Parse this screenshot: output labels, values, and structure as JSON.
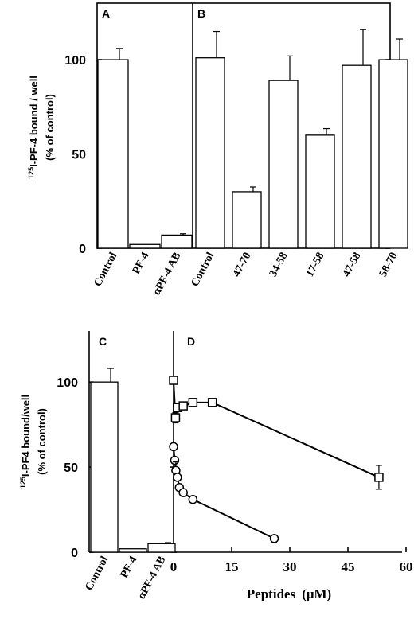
{
  "chart_data": [
    {
      "type": "bar",
      "panel": "A",
      "ylabel_sup": "125",
      "ylabel_line1": "I-PF-4 bound / well",
      "ylabel_line2": "(% of control)",
      "categories": [
        "Control",
        "PF-4",
        "αPF-4 AB"
      ],
      "values": [
        100,
        2,
        7
      ],
      "errors": [
        6,
        0,
        0.7
      ],
      "ylim": [
        0,
        130
      ],
      "yticks": [
        0,
        50,
        100
      ]
    },
    {
      "type": "bar",
      "panel": "B",
      "categories": [
        "Control",
        "47-70",
        "34-58",
        "17-58",
        "47-58",
        "58-70"
      ],
      "values": [
        101,
        30,
        89,
        60,
        97,
        100
      ],
      "errors": [
        14,
        2.5,
        13,
        3.5,
        19,
        11
      ],
      "ylim": [
        0,
        130
      ]
    },
    {
      "type": "bar",
      "panel": "C",
      "ylabel_sup": "125",
      "ylabel_line1": "I-PF4 bound/well",
      "ylabel_line2": "(% of control)",
      "categories": [
        "Control",
        "PF-4",
        "αPF-4 AB"
      ],
      "values": [
        100,
        2,
        5
      ],
      "errors": [
        8,
        0,
        0.6
      ],
      "ylim": [
        0,
        130
      ],
      "yticks": [
        0,
        50,
        100
      ]
    },
    {
      "type": "line",
      "panel": "D",
      "xlabel": "Peptides",
      "xunit": "(μM)",
      "xlim": [
        0,
        60
      ],
      "xticks": [
        0,
        15,
        30,
        45,
        60
      ],
      "ylim": [
        0,
        130
      ],
      "series": [
        {
          "marker": "square",
          "x": [
            0,
            0.5,
            1,
            2.5,
            5,
            10,
            53
          ],
          "y": [
            101,
            79,
            85,
            86,
            88,
            88,
            44
          ],
          "err": [
            0,
            3,
            0,
            0,
            0,
            0,
            7
          ]
        },
        {
          "marker": "circle",
          "x": [
            0,
            0.3,
            0.6,
            1,
            1.5,
            2.5,
            5,
            26
          ],
          "y": [
            62,
            54,
            48,
            44,
            38,
            35,
            31,
            8
          ],
          "err": [
            0,
            0,
            5,
            0,
            0,
            0,
            0,
            0
          ]
        }
      ]
    }
  ]
}
